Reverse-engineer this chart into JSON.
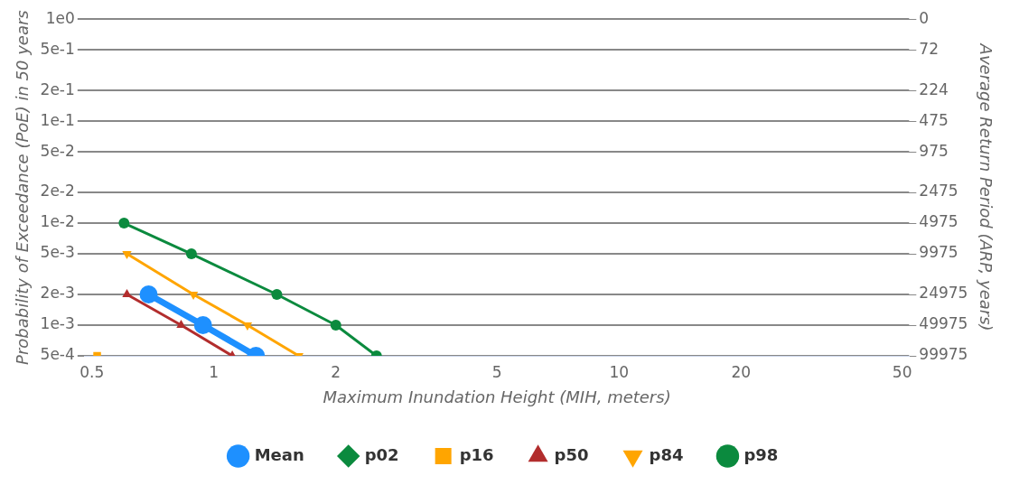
{
  "chart_data": {
    "type": "line",
    "xlabel": "Maximum Inundation Height (MIH, meters)",
    "ylabel": "Probability of Exceedance (PoE) in 50 years",
    "y2label": "Average Return Period (ARP, years)",
    "log": "xy",
    "grid": "y",
    "legend": "bottom",
    "xlim": [
      0.48,
      52
    ],
    "xticks": [
      0.5,
      1,
      2,
      5,
      10,
      20,
      50
    ],
    "ylim": [
      0.0005,
      1
    ],
    "yticks": [
      {
        "value": 1,
        "label": "1e0"
      },
      {
        "value": 0.5,
        "label": "5e-1"
      },
      {
        "value": 0.2,
        "label": "2e-1"
      },
      {
        "value": 0.1,
        "label": "1e-1"
      },
      {
        "value": 0.05,
        "label": "5e-2"
      },
      {
        "value": 0.02,
        "label": "2e-2"
      },
      {
        "value": 0.01,
        "label": "1e-2"
      },
      {
        "value": 0.005,
        "label": "5e-3"
      },
      {
        "value": 0.002,
        "label": "2e-3"
      },
      {
        "value": 0.001,
        "label": "1e-3"
      },
      {
        "value": 0.0005,
        "label": "5e-4"
      }
    ],
    "y2_categories": [
      "0",
      "72",
      "224",
      "475",
      "975",
      "2475",
      "4975",
      "9975",
      "24975",
      "49975",
      "99975"
    ],
    "series": [
      {
        "name": "Mean",
        "color": "#1e90ff",
        "marker": "circle",
        "x": [
          0.69,
          0.94,
          1.27
        ],
        "values": [
          0.002,
          0.001,
          0.0005
        ]
      },
      {
        "name": "p02",
        "color": "#0b8a3e",
        "marker": "diamond"
      },
      {
        "name": "p16",
        "color": "#ffa500",
        "marker": "square",
        "x": [
          0.515
        ],
        "values": [
          0.0005
        ]
      },
      {
        "name": "p50",
        "color": "#b22d2d",
        "marker": "triangle",
        "x": [
          0.61,
          0.83,
          1.11
        ],
        "values": [
          0.002,
          0.001,
          0.0005
        ]
      },
      {
        "name": "p84",
        "color": "#ffa500",
        "marker": "triangle-down",
        "x": [
          0.61,
          0.89,
          1.21,
          1.62
        ],
        "values": [
          0.005,
          0.002,
          0.001,
          0.0005
        ]
      },
      {
        "name": "p98",
        "color": "#0b8a3e",
        "marker": "circle",
        "x": [
          0.6,
          0.88,
          1.43,
          2.0,
          2.52
        ],
        "values": [
          0.01,
          0.005,
          0.002,
          0.001,
          0.0005
        ]
      }
    ]
  }
}
